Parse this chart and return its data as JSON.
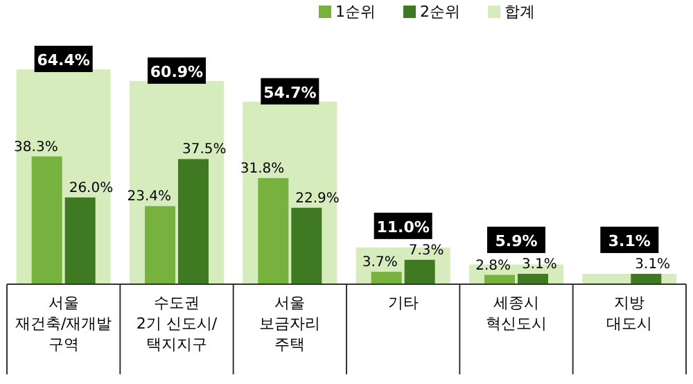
{
  "chart_data": {
    "type": "bar",
    "categories": [
      "서울\n재건축/재개발\n구역",
      "수도권\n2기 신도시/\n택지지구",
      "서울\n보금자리\n주택",
      "기타",
      "세종시\n혁신도시",
      "지방\n대도시"
    ],
    "series": [
      {
        "name": "1순위",
        "color": "#78b23e",
        "values": [
          38.3,
          23.4,
          31.8,
          3.7,
          2.8,
          null
        ],
        "value_labels": [
          "38.3%",
          "23.4%",
          "31.8%",
          "3.7%",
          "2.8%",
          null
        ]
      },
      {
        "name": "2순위",
        "color": "#3f7a22",
        "values": [
          26.0,
          37.5,
          22.9,
          7.3,
          3.1,
          3.1
        ],
        "value_labels": [
          "26.0%",
          "37.5%",
          "22.9%",
          "7.3%",
          "3.1%",
          "3.1%"
        ]
      },
      {
        "name": "합계",
        "color": "#d6ecbc",
        "values": [
          64.4,
          60.9,
          54.7,
          11.0,
          5.9,
          3.1
        ],
        "value_labels": [
          "64.4%",
          "60.9%",
          "54.7%",
          "11.0%",
          "5.9%",
          "3.1%"
        ]
      }
    ],
    "legend": "top"
  }
}
